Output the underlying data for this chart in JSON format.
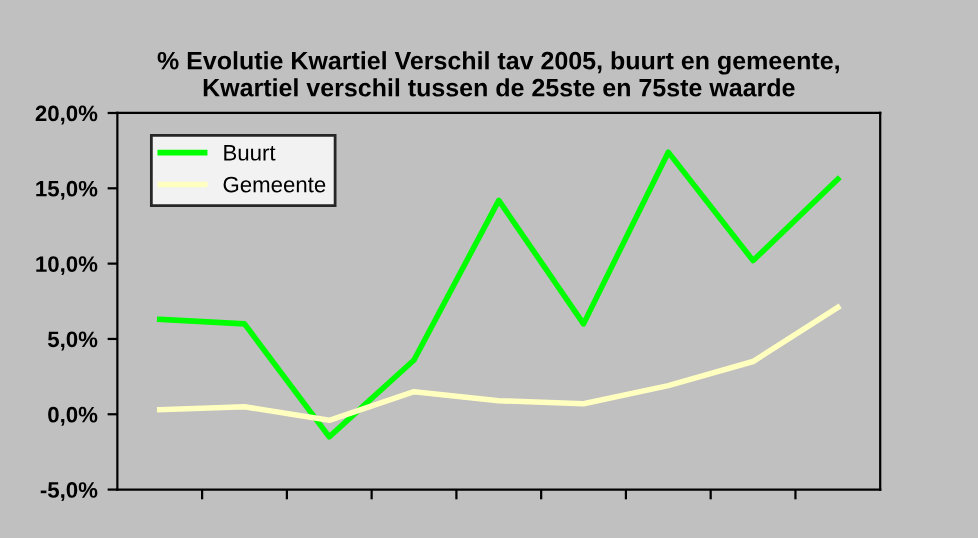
{
  "chart_data": {
    "type": "line",
    "title": "% Evolutie Kwartiel Verschil tav 2005, buurt en gemeente,\nKwartiel verschil tussen de 25ste en 75ste waarde",
    "categories": [
      null,
      null,
      null,
      null,
      null,
      null,
      null,
      null,
      null
    ],
    "series": [
      {
        "name": "Buurt",
        "color": "#00ff00",
        "values": [
          6.3,
          6.0,
          -1.5,
          3.6,
          14.2,
          6.0,
          17.4,
          10.2,
          15.6
        ]
      },
      {
        "name": "Gemeente",
        "color": "#ffffc0",
        "values": [
          0.3,
          0.5,
          -0.4,
          1.5,
          0.9,
          0.7,
          1.9,
          3.5,
          7.1
        ]
      }
    ],
    "ylim": [
      -5,
      20
    ],
    "yticks": [
      {
        "value": -5,
        "label": "-5,0%"
      },
      {
        "value": 0,
        "label": "0,0%"
      },
      {
        "value": 5,
        "label": "5,0%"
      },
      {
        "value": 10,
        "label": "10,0%"
      },
      {
        "value": 15,
        "label": "15,0%"
      },
      {
        "value": 20,
        "label": "20,0%"
      }
    ],
    "grid": false,
    "legend": "top left",
    "marker": "none",
    "line_style": "solid"
  }
}
